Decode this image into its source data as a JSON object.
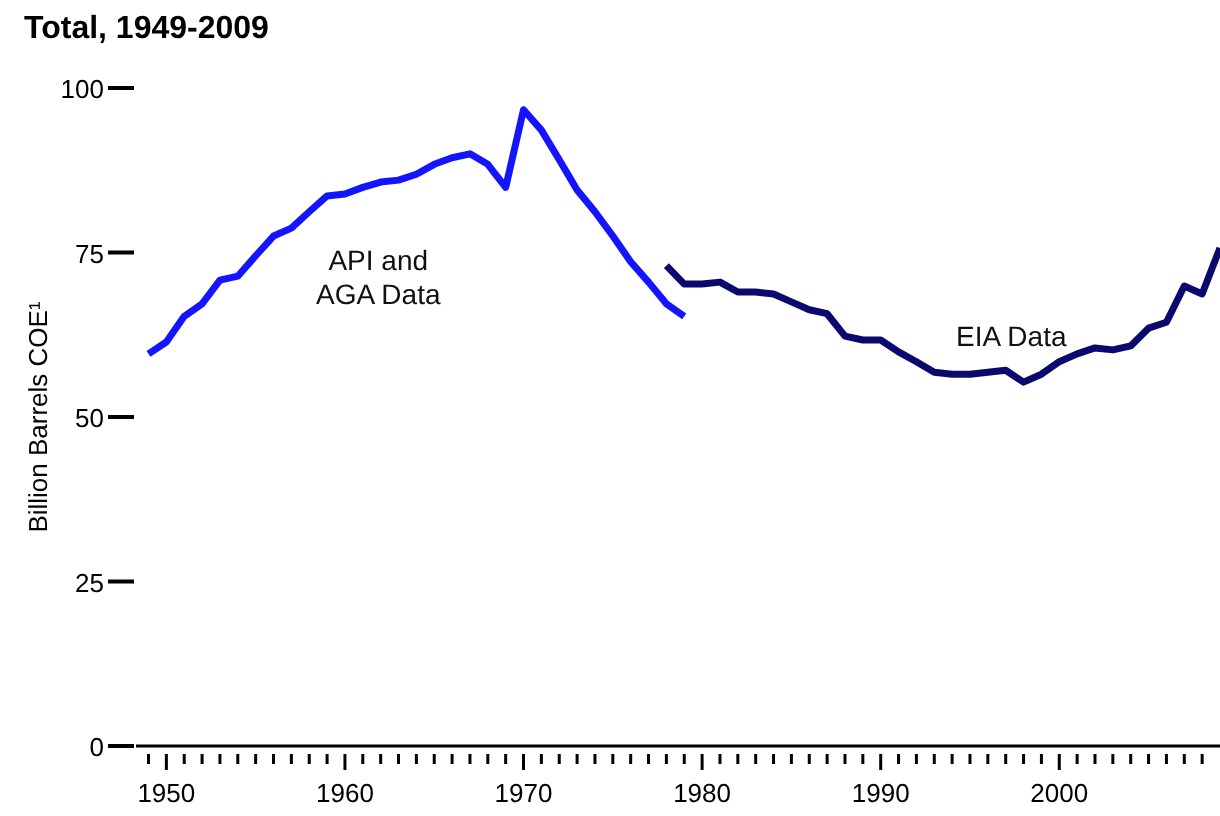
{
  "chart_data": {
    "type": "line",
    "title": "Total, 1949-2009",
    "ylabel": "Billion Barrels COE¹",
    "xlim": [
      1948.3,
      2009
    ],
    "ylim": [
      0,
      100
    ],
    "yticks": [
      0,
      25,
      50,
      75,
      100
    ],
    "xticks": [
      {
        "value": 1949,
        "label": null
      },
      1950,
      {
        "value": 1951,
        "label": null
      },
      {
        "value": 1952,
        "label": null
      },
      {
        "value": 1953,
        "label": null
      },
      {
        "value": 1954,
        "label": null
      },
      {
        "value": 1955,
        "label": null
      },
      {
        "value": 1956,
        "label": null
      },
      {
        "value": 1957,
        "label": null
      },
      {
        "value": 1958,
        "label": null
      },
      {
        "value": 1959,
        "label": null
      },
      1960,
      {
        "value": 1961,
        "label": null
      },
      {
        "value": 1962,
        "label": null
      },
      {
        "value": 1963,
        "label": null
      },
      {
        "value": 1964,
        "label": null
      },
      {
        "value": 1965,
        "label": null
      },
      {
        "value": 1966,
        "label": null
      },
      {
        "value": 1967,
        "label": null
      },
      {
        "value": 1968,
        "label": null
      },
      {
        "value": 1969,
        "label": null
      },
      1970,
      {
        "value": 1971,
        "label": null
      },
      {
        "value": 1972,
        "label": null
      },
      {
        "value": 1973,
        "label": null
      },
      {
        "value": 1974,
        "label": null
      },
      {
        "value": 1975,
        "label": null
      },
      {
        "value": 1976,
        "label": null
      },
      {
        "value": 1977,
        "label": null
      },
      {
        "value": 1978,
        "label": null
      },
      {
        "value": 1979,
        "label": null
      },
      1980,
      {
        "value": 1981,
        "label": null
      },
      {
        "value": 1982,
        "label": null
      },
      {
        "value": 1983,
        "label": null
      },
      {
        "value": 1984,
        "label": null
      },
      {
        "value": 1985,
        "label": null
      },
      {
        "value": 1986,
        "label": null
      },
      {
        "value": 1987,
        "label": null
      },
      {
        "value": 1988,
        "label": null
      },
      {
        "value": 1989,
        "label": null
      },
      1990,
      {
        "value": 1991,
        "label": null
      },
      {
        "value": 1992,
        "label": null
      },
      {
        "value": 1993,
        "label": null
      },
      {
        "value": 1994,
        "label": null
      },
      {
        "value": 1995,
        "label": null
      },
      {
        "value": 1996,
        "label": null
      },
      {
        "value": 1997,
        "label": null
      },
      {
        "value": 1998,
        "label": null
      },
      {
        "value": 1999,
        "label": null
      },
      2000,
      {
        "value": 2001,
        "label": null
      },
      {
        "value": 2002,
        "label": null
      },
      {
        "value": 2003,
        "label": null
      },
      {
        "value": 2004,
        "label": null
      },
      {
        "value": 2005,
        "label": null
      },
      {
        "value": 2006,
        "label": null
      },
      {
        "value": 2007,
        "label": null
      },
      {
        "value": 2008,
        "label": null
      }
    ],
    "grid": false,
    "legend": false,
    "marker": "none",
    "line_style": "solid",
    "series": [
      {
        "color": "#1414ff",
        "x": [
          1949,
          1950,
          1951,
          1952,
          1953,
          1954,
          1955,
          1956,
          1957,
          1958,
          1959,
          1960,
          1961,
          1962,
          1963,
          1964,
          1965,
          1966,
          1967,
          1968,
          1969,
          1970,
          1971,
          1972,
          1973,
          1974,
          1975,
          1976,
          1977,
          1978,
          1979
        ],
        "values": [
          59.6,
          61.4,
          65.3,
          67.2,
          70.8,
          71.4,
          74.5,
          77.5,
          78.7,
          81.2,
          83.6,
          83.9,
          84.9,
          85.7,
          86.0,
          86.9,
          88.4,
          89.4,
          90.0,
          88.4,
          84.9,
          96.7,
          93.6,
          89.1,
          84.5,
          81.2,
          77.5,
          73.6,
          70.5,
          67.2,
          65.3
        ]
      },
      {
        "color": "#0a0a6e",
        "x": [
          1978,
          1979,
          1980,
          1981,
          1982,
          1983,
          1984,
          1985,
          1986,
          1987,
          1988,
          1989,
          1990,
          1991,
          1992,
          1993,
          1994,
          1995,
          1996,
          1997,
          1998,
          1999,
          2000,
          2001,
          2002,
          2003,
          2004,
          2005,
          2006,
          2007,
          2008,
          2009
        ],
        "values": [
          73.0,
          70.2,
          70.2,
          70.5,
          69.0,
          69.0,
          68.7,
          67.5,
          66.3,
          65.7,
          62.3,
          61.7,
          61.7,
          59.9,
          58.4,
          56.8,
          56.5,
          56.5,
          56.8,
          57.1,
          55.3,
          56.5,
          58.4,
          59.6,
          60.5,
          60.2,
          60.8,
          63.5,
          64.4,
          69.9,
          68.7,
          75.7
        ]
      }
    ],
    "annotations": [
      "API and\nAGA Data",
      "EIA Data"
    ]
  }
}
